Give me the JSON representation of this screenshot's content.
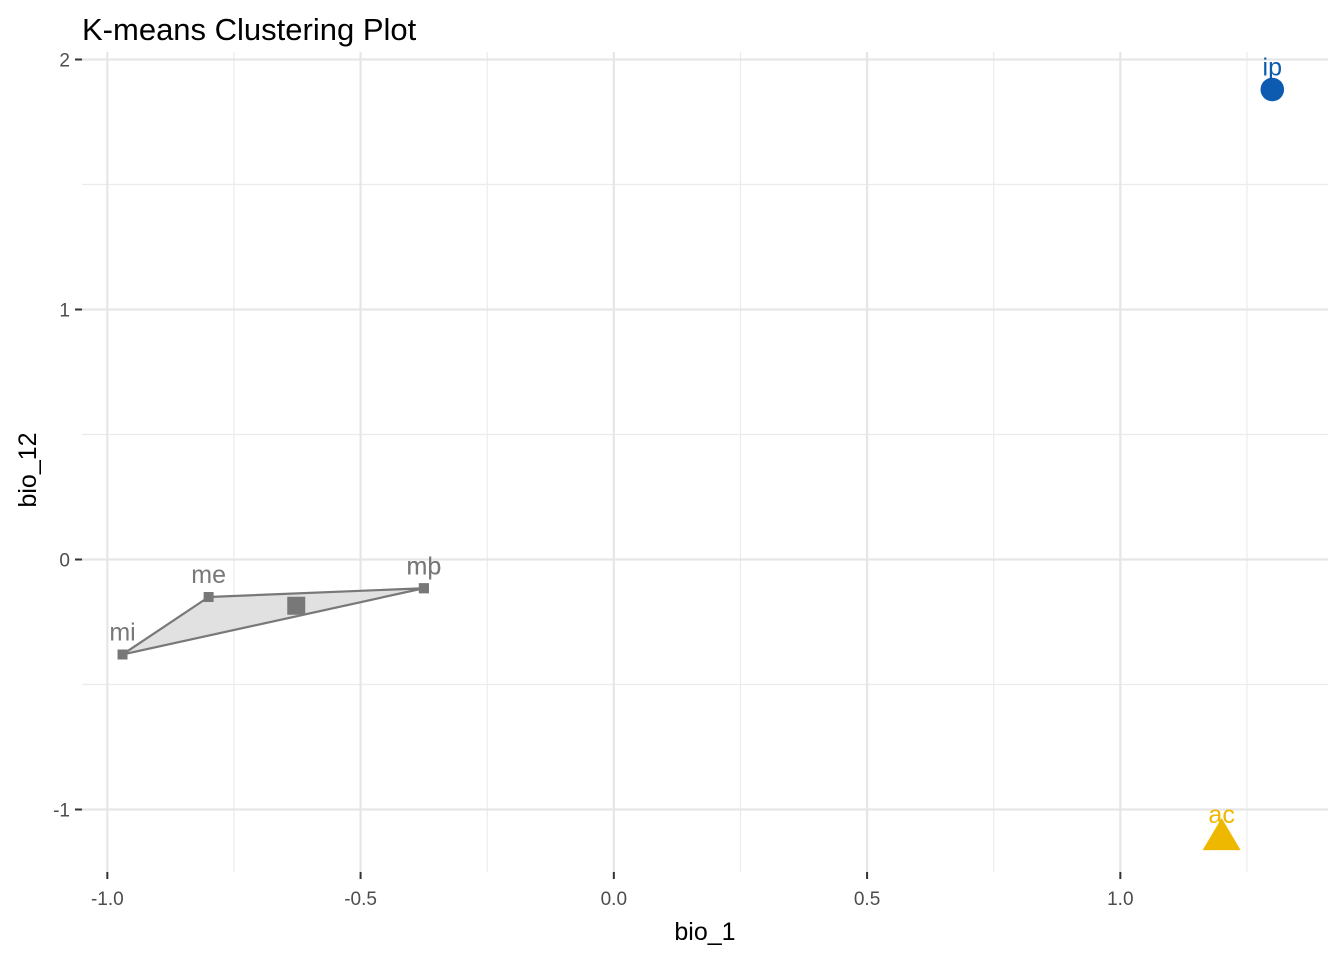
{
  "chart_data": {
    "type": "scatter",
    "title": "K-means Clustering Plot",
    "xlabel": "bio_1",
    "ylabel": "bio_12",
    "xlim": [
      -1.05,
      1.41
    ],
    "ylim": [
      -1.25,
      2.03
    ],
    "x_ticks": [
      -1.0,
      -0.5,
      0.0,
      0.5,
      1.0
    ],
    "x_tick_labels": [
      "-1.0",
      "-0.5",
      "0.0",
      "0.5",
      "1.0"
    ],
    "y_ticks": [
      -1,
      0,
      1,
      2
    ],
    "y_tick_labels": [
      "-1",
      "0",
      "1",
      "2"
    ],
    "grid": true,
    "clusters": [
      {
        "color": "#0C5BB0",
        "shape": "circle",
        "points": [
          {
            "label": "ip",
            "x": 1.3,
            "y": 1.88
          }
        ]
      },
      {
        "color": "#EFB800",
        "shape": "triangle",
        "points": [
          {
            "label": "ac",
            "x": 1.2,
            "y": -1.11
          }
        ]
      },
      {
        "color": "#787878",
        "shape": "square",
        "hull_fill": "#e1e1e1",
        "centroid": {
          "x": -0.627,
          "y": -0.185
        },
        "points": [
          {
            "label": "me",
            "x": -0.8,
            "y": -0.15
          },
          {
            "label": "mi",
            "x": -0.97,
            "y": -0.38
          },
          {
            "label": "mb",
            "x": -0.375,
            "y": -0.115
          },
          {
            "label": "mp",
            "x": -0.375,
            "y": -0.115
          }
        ],
        "hull": [
          "mi",
          "me",
          "mb"
        ]
      }
    ]
  }
}
